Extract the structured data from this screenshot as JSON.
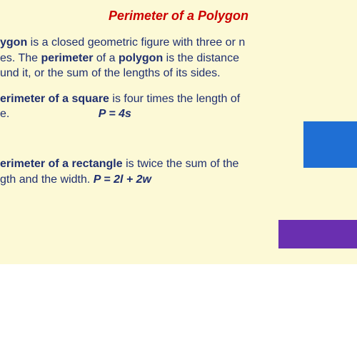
{
  "title": {
    "text": "Perimeter of a Polygon",
    "color": "#cc0000",
    "fontsize": 18
  },
  "bodyTextColor": "#1f2f6f",
  "background": "#fcf9d6",
  "para1": {
    "line1_pre": "ygon",
    "line1_rest": " is a closed geometric figure with three or n",
    "line2_pre": "es.   The ",
    "line2_b1": "perimeter",
    "line2_mid": " of a ",
    "line2_b2": "polygon",
    "line2_rest": " is the distance",
    "line3": "und it, or the sum of the lengths of its sides."
  },
  "para2": {
    "line1_b": "erimeter of a square",
    "line1_rest": "  is four times the length of",
    "line2_pre": "e.",
    "formula": "P = 4s"
  },
  "para3": {
    "line1_b": "erimeter of a rectangle",
    "line1_rest": " is twice the sum of the",
    "line2_pre": "gth and the width.  ",
    "formula": "P = 2l + 2w"
  },
  "shapes": {
    "square": {
      "fill": "#1f6fd4",
      "w": 75,
      "h": 65
    },
    "rectangle": {
      "fill": "#6a2fb0",
      "w": 110,
      "h": 40
    }
  }
}
